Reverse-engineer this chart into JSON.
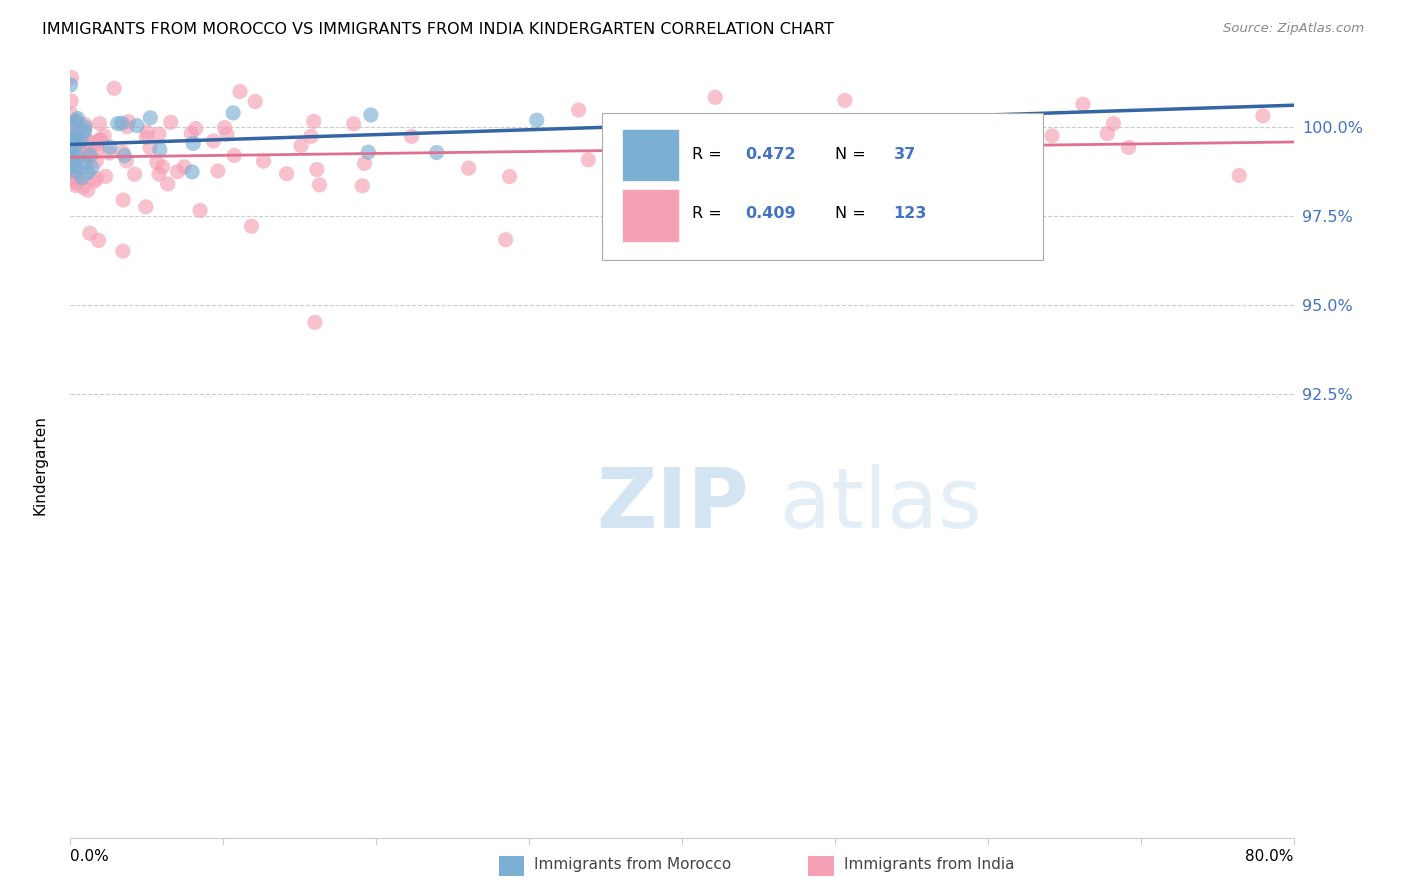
{
  "title": "IMMIGRANTS FROM MOROCCO VS IMMIGRANTS FROM INDIA KINDERGARTEN CORRELATION CHART",
  "source": "Source: ZipAtlas.com",
  "ylabel": "Kindergarten",
  "ytick_values": [
    92.5,
    95.0,
    97.5,
    100.0
  ],
  "xmin": 0.0,
  "xmax": 80.0,
  "ymin": 80.0,
  "ymax": 101.8,
  "morocco_color": "#7bafd4",
  "morocco_edge_color": "#7bafd4",
  "india_color": "#f4a0b5",
  "india_edge_color": "#f4a0b5",
  "morocco_line_color": "#3465a4",
  "india_line_color": "#e07090",
  "legend_text_color": "#000000",
  "legend_value_color": "#4472c4",
  "morocco_R": 0.472,
  "morocco_N": 37,
  "india_R": 0.409,
  "india_N": 123,
  "watermark_zip": "ZIP",
  "watermark_atlas": "atlas",
  "grid_color": "#cccccc",
  "axis_color": "#cccccc",
  "right_tick_color": "#4472c4",
  "bottom_label_color": "#555555"
}
